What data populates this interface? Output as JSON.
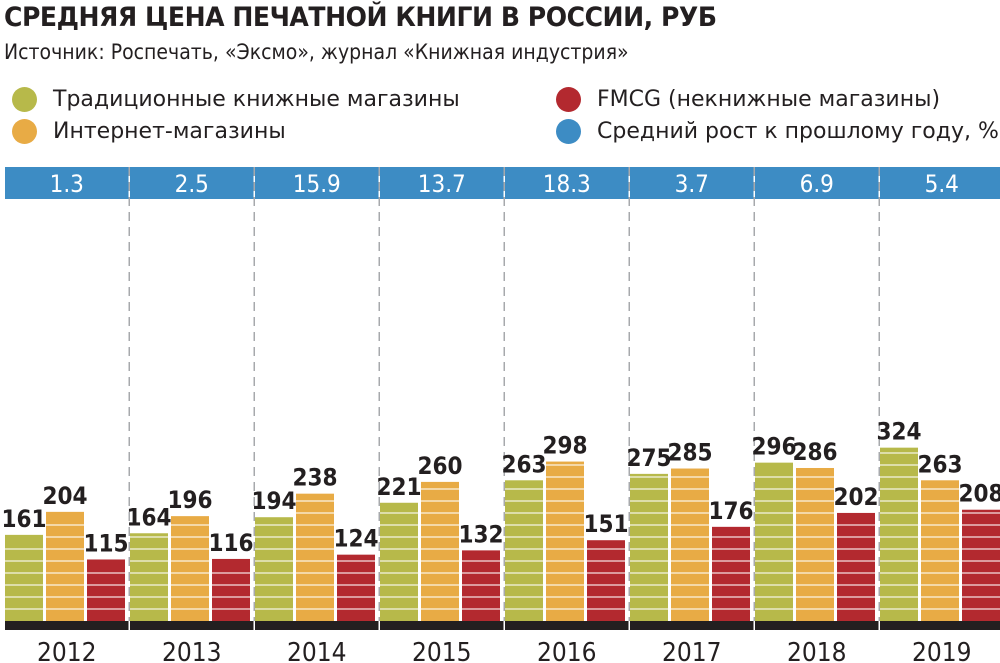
{
  "title": "СРЕДНЯЯ ЦЕНА ПЕЧАТНОЙ КНИГИ В РОССИИ, РУБ",
  "subtitle": "Источник: Роспечать, «Эксмо», журнал «Книжная индустрия»",
  "legend": [
    {
      "key": "trad",
      "label": "Традиционные книжные магазины",
      "color": "#b7b94a"
    },
    {
      "key": "inet",
      "label": "Интернет-магазины",
      "color": "#e8ab45"
    },
    {
      "key": "fmcg",
      "label": "FMCG (некнижные магазины)",
      "color": "#b3292f"
    },
    {
      "key": "growth",
      "label": "Средний рост к прошлому году, %",
      "color": "#3d8cc4"
    }
  ],
  "chart_data": {
    "type": "bar",
    "title": "СРЕДНЯЯ ЦЕНА ПЕЧАТНОЙ КНИГИ В РОССИИ, РУБ",
    "subtitle": "Источник: Роспечать, «Эксмо», журнал «Книжная индустрия»",
    "categories": [
      "2012",
      "2013",
      "2014",
      "2015",
      "2016",
      "2017",
      "2018",
      "2019"
    ],
    "series": [
      {
        "name": "Традиционные книжные магазины",
        "color": "#b7b94a",
        "values": [
          161,
          164,
          194,
          221,
          263,
          275,
          296,
          324
        ]
      },
      {
        "name": "Интернет-магазины",
        "color": "#e8ab45",
        "values": [
          204,
          196,
          238,
          260,
          298,
          285,
          286,
          263
        ]
      },
      {
        "name": "FMCG (некнижные магазины)",
        "color": "#b3292f",
        "values": [
          115,
          116,
          124,
          132,
          151,
          176,
          202,
          208
        ]
      }
    ],
    "growth": {
      "name": "Средний рост к прошлому году, %",
      "color": "#3d8cc4",
      "values": [
        "1.3",
        "2.5",
        "15.9",
        "13.7",
        "18.3",
        "3.7",
        "6.9",
        "5.4"
      ]
    },
    "ylim": [
      0,
      350
    ],
    "grid": false,
    "legend_position": "top"
  }
}
